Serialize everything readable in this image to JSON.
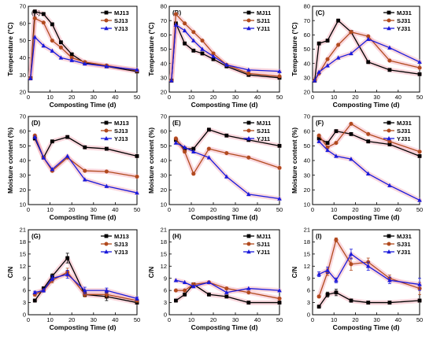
{
  "colors": {
    "MJ": "#000000",
    "SJ": "#b14a1e",
    "YJ": "#1a1adb",
    "halo": "#f5b8c2"
  },
  "chart_data": [
    {
      "panel": "(A)",
      "type": "line",
      "xlabel": "Composting Time (d)",
      "ylabel": "Temperature (°C)",
      "xlim": [
        0,
        50
      ],
      "xticks": [
        0,
        10,
        20,
        30,
        40,
        50
      ],
      "ylim": [
        20,
        70
      ],
      "yticks": [
        20,
        30,
        40,
        50,
        60,
        70
      ],
      "series": [
        {
          "name": "MJ13",
          "marker": "square",
          "x": [
            1,
            3,
            7,
            11,
            15,
            20,
            26,
            36,
            50
          ],
          "y": [
            28,
            67,
            65.5,
            59.5,
            49,
            42,
            37,
            35,
            32
          ]
        },
        {
          "name": "SJ13",
          "marker": "circle",
          "x": [
            1,
            3,
            7,
            11,
            15,
            20,
            26,
            36,
            50
          ],
          "y": [
            28,
            63,
            60.5,
            50,
            46,
            40,
            37.5,
            35.5,
            32.5
          ]
        },
        {
          "name": "YJ13",
          "marker": "triangle",
          "x": [
            1,
            3,
            7,
            11,
            15,
            20,
            26,
            36,
            50
          ],
          "y": [
            28,
            52,
            47,
            44,
            40,
            38.5,
            36.5,
            35,
            33
          ]
        }
      ]
    },
    {
      "panel": "(B)",
      "type": "line",
      "xlabel": "Composting Time (d)",
      "ylabel": "Temperature (°C)",
      "xlim": [
        0,
        50
      ],
      "xticks": [
        0,
        10,
        20,
        30,
        40,
        50
      ],
      "ylim": [
        20,
        80
      ],
      "yticks": [
        20,
        30,
        40,
        50,
        60,
        70,
        80
      ],
      "series": [
        {
          "name": "MJ11",
          "marker": "square",
          "x": [
            1,
            3,
            7,
            11,
            15,
            20,
            26,
            36,
            50
          ],
          "y": [
            28,
            68,
            54,
            49,
            47,
            43,
            38,
            32,
            30
          ]
        },
        {
          "name": "SJ11",
          "marker": "circle",
          "x": [
            1,
            3,
            7,
            11,
            15,
            20,
            26,
            36,
            50
          ],
          "y": [
            28,
            74.5,
            68,
            62,
            56,
            47,
            39,
            33,
            31
          ]
        },
        {
          "name": "YJ11",
          "marker": "triangle",
          "x": [
            1,
            3,
            7,
            11,
            15,
            20,
            26,
            36,
            50
          ],
          "y": [
            28,
            67,
            63,
            56,
            50,
            45,
            39,
            35.5,
            34.5
          ]
        }
      ]
    },
    {
      "panel": "(C)",
      "type": "line",
      "xlabel": "Composting Time (d)",
      "ylabel": "Temperature (°C)",
      "xlim": [
        0,
        50
      ],
      "xticks": [
        0,
        10,
        20,
        30,
        40,
        50
      ],
      "ylim": [
        20,
        80
      ],
      "yticks": [
        20,
        30,
        40,
        50,
        60,
        70,
        80
      ],
      "series": [
        {
          "name": "MJ31",
          "marker": "square",
          "x": [
            1,
            3,
            7,
            12,
            18,
            26,
            36,
            50
          ],
          "y": [
            28,
            54,
            56,
            70,
            62,
            41,
            35.5,
            32.5
          ]
        },
        {
          "name": "SJ31",
          "marker": "circle",
          "x": [
            1,
            3,
            7,
            12,
            18,
            26,
            36,
            50
          ],
          "y": [
            28,
            33,
            43,
            53,
            62,
            59,
            42,
            37
          ]
        },
        {
          "name": "YJ31",
          "marker": "triangle",
          "x": [
            1,
            3,
            7,
            12,
            18,
            26,
            36,
            50
          ],
          "y": [
            28,
            34,
            38.5,
            44,
            47,
            57,
            51,
            41
          ]
        }
      ]
    },
    {
      "panel": "(D)",
      "type": "line",
      "xlabel": "Composting Time (d)",
      "ylabel": "Moisture content (%)",
      "xlim": [
        0,
        50
      ],
      "xticks": [
        0,
        10,
        20,
        30,
        40,
        50
      ],
      "ylim": [
        10,
        70
      ],
      "yticks": [
        10,
        20,
        30,
        40,
        50,
        60,
        70
      ],
      "series": [
        {
          "name": "MJ13",
          "marker": "square",
          "x": [
            3,
            7,
            11,
            18,
            26,
            36,
            50
          ],
          "y": [
            55,
            42,
            53,
            56,
            49,
            48,
            43
          ]
        },
        {
          "name": "SJ13",
          "marker": "circle",
          "x": [
            3,
            7,
            11,
            18,
            26,
            36,
            50
          ],
          "y": [
            57,
            42,
            33,
            42,
            33,
            32.5,
            29
          ]
        },
        {
          "name": "YJ13",
          "marker": "triangle",
          "x": [
            3,
            7,
            11,
            18,
            26,
            36,
            50
          ],
          "y": [
            56,
            42,
            34,
            43,
            27,
            22.5,
            18
          ]
        }
      ]
    },
    {
      "panel": "(E)",
      "type": "line",
      "xlabel": "Composting Time (d)",
      "ylabel": "Moisture content (%)",
      "xlim": [
        0,
        50
      ],
      "xticks": [
        0,
        10,
        20,
        30,
        40,
        50
      ],
      "ylim": [
        10,
        70
      ],
      "yticks": [
        10,
        20,
        30,
        40,
        50,
        60,
        70
      ],
      "series": [
        {
          "name": "MJ11",
          "marker": "square",
          "x": [
            3,
            7,
            11,
            18,
            26,
            36,
            50
          ],
          "y": [
            54,
            48,
            48,
            61,
            57,
            54,
            50
          ]
        },
        {
          "name": "SJ11",
          "marker": "circle",
          "x": [
            3,
            7,
            11,
            18,
            26,
            36,
            50
          ],
          "y": [
            55,
            46,
            31,
            48,
            45,
            42,
            35
          ]
        },
        {
          "name": "YJ11",
          "marker": "triangle",
          "x": [
            3,
            7,
            11,
            18,
            26,
            36,
            50
          ],
          "y": [
            52,
            49,
            46,
            42,
            29,
            17,
            14
          ]
        }
      ]
    },
    {
      "panel": "(F)",
      "type": "line",
      "xlabel": "Composting Time (d)",
      "ylabel": "Moisture content (%)",
      "xlim": [
        0,
        50
      ],
      "xticks": [
        0,
        10,
        20,
        30,
        40,
        50
      ],
      "ylim": [
        10,
        70
      ],
      "yticks": [
        10,
        20,
        30,
        40,
        50,
        60,
        70
      ],
      "series": [
        {
          "name": "MJ31",
          "marker": "square",
          "x": [
            3,
            7,
            11,
            18,
            26,
            36,
            50
          ],
          "y": [
            55,
            52,
            60,
            58,
            53,
            51,
            43
          ]
        },
        {
          "name": "SJ31",
          "marker": "circle",
          "x": [
            3,
            7,
            11,
            18,
            26,
            36,
            50
          ],
          "y": [
            57,
            49,
            52,
            65,
            58,
            53,
            46
          ]
        },
        {
          "name": "YJ31",
          "marker": "triangle",
          "x": [
            3,
            7,
            11,
            18,
            26,
            36,
            50
          ],
          "y": [
            53,
            47,
            43,
            41,
            31,
            23,
            13
          ]
        }
      ]
    },
    {
      "panel": "(G)",
      "type": "line",
      "xlabel": "Composting Time (d)",
      "ylabel": "C/N",
      "xlim": [
        0,
        50
      ],
      "xticks": [
        0,
        10,
        20,
        30,
        40,
        50
      ],
      "ylim": [
        0,
        21
      ],
      "yticks": [
        0,
        3,
        6,
        9,
        12,
        15,
        18,
        21
      ],
      "series": [
        {
          "name": "MJ13",
          "marker": "square",
          "x": [
            3,
            7,
            11,
            18,
            26,
            36,
            50
          ],
          "y": [
            3.5,
            6.5,
            9.5,
            14.0,
            5.0,
            4.5,
            3.0
          ],
          "err": [
            0.3,
            0.4,
            0.6,
            1.2,
            0.5,
            1.0,
            0.4
          ]
        },
        {
          "name": "SJ13",
          "marker": "circle",
          "x": [
            3,
            7,
            11,
            18,
            26,
            36,
            50
          ],
          "y": [
            5.0,
            6.0,
            8.5,
            10.5,
            5.0,
            5.0,
            3.5
          ],
          "err": [
            0.4,
            0.4,
            0.6,
            1.0,
            0.6,
            0.6,
            0.4
          ]
        },
        {
          "name": "YJ13",
          "marker": "triangle",
          "x": [
            3,
            7,
            11,
            18,
            26,
            36,
            50
          ],
          "y": [
            5.5,
            6.0,
            9.0,
            10.0,
            6.0,
            6.0,
            4.0
          ],
          "err": [
            0.3,
            0.4,
            0.6,
            1.0,
            0.8,
            0.6,
            0.4
          ]
        }
      ]
    },
    {
      "panel": "(H)",
      "type": "line",
      "xlabel": "Composting Time (d)",
      "ylabel": "C/N",
      "xlim": [
        0,
        50
      ],
      "xticks": [
        0,
        10,
        20,
        30,
        40,
        50
      ],
      "ylim": [
        0,
        21
      ],
      "yticks": [
        0,
        3,
        6,
        9,
        12,
        15,
        18,
        21
      ],
      "series": [
        {
          "name": "MJ11",
          "marker": "square",
          "x": [
            3,
            7,
            11,
            18,
            26,
            36,
            50
          ],
          "y": [
            3.5,
            5.0,
            7.5,
            5.0,
            4.5,
            3.0,
            3.0
          ]
        },
        {
          "name": "SJ11",
          "marker": "circle",
          "x": [
            3,
            7,
            11,
            18,
            26,
            36,
            50
          ],
          "y": [
            6.0,
            6.0,
            7.5,
            8.0,
            6.5,
            5.5,
            4.0
          ]
        },
        {
          "name": "YJ11",
          "marker": "triangle",
          "x": [
            3,
            7,
            11,
            18,
            26,
            36,
            50
          ],
          "y": [
            8.5,
            8.0,
            7.0,
            8.0,
            5.5,
            6.5,
            6.0
          ]
        }
      ]
    },
    {
      "panel": "(I)",
      "type": "line",
      "xlabel": "Composting Time (d)",
      "ylabel": "C/N",
      "xlim": [
        0,
        50
      ],
      "xticks": [
        0,
        10,
        20,
        30,
        40,
        50
      ],
      "ylim": [
        0,
        21
      ],
      "yticks": [
        0,
        3,
        6,
        9,
        12,
        15,
        18,
        21
      ],
      "series": [
        {
          "name": "MJ31",
          "marker": "square",
          "x": [
            3,
            7,
            11,
            18,
            26,
            36,
            50
          ],
          "y": [
            2.0,
            5.0,
            5.5,
            3.5,
            3.0,
            3.0,
            3.5
          ],
          "err": [
            0.3,
            0.6,
            0.8,
            0.4,
            0.3,
            0.3,
            0.4
          ]
        },
        {
          "name": "SJ31",
          "marker": "circle",
          "x": [
            3,
            7,
            11,
            18,
            26,
            36,
            50
          ],
          "y": [
            4.5,
            10.5,
            18.5,
            12.5,
            13.0,
            9.0,
            6.5
          ],
          "err": [
            0.3,
            0.8,
            0.5,
            1.5,
            1.0,
            0.8,
            1.5
          ]
        },
        {
          "name": "YJ31",
          "marker": "triangle",
          "x": [
            3,
            7,
            11,
            18,
            26,
            36,
            50
          ],
          "y": [
            10.0,
            11.0,
            8.5,
            15.0,
            12.0,
            8.5,
            7.5
          ],
          "err": [
            0.6,
            0.8,
            0.6,
            1.2,
            1.0,
            0.8,
            1.5
          ]
        }
      ]
    }
  ]
}
